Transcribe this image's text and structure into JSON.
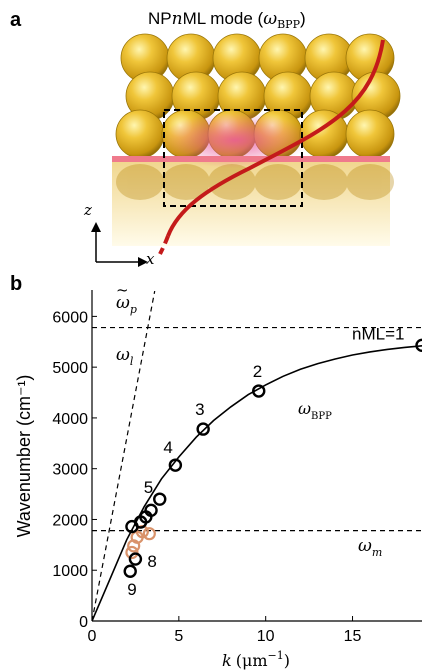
{
  "panel_a": {
    "letter": "a",
    "title_prefix": "NP",
    "title_n": "n",
    "title_suffix": "ML mode (",
    "title_omega": "ω",
    "title_sub": "BPP",
    "title_close": ")",
    "axis_z": "z",
    "axis_x": "x"
  },
  "panel_b": {
    "letter": "b"
  },
  "chart_data": {
    "type": "scatter",
    "xlabel_main": "k",
    "xlabel_unit": "(μm",
    "xlabel_exp": "−1",
    "xlabel_close": ")",
    "ylabel": "Wavenumber (cm⁻¹)",
    "xlim": [
      0,
      19
    ],
    "ylim": [
      0,
      6500
    ],
    "xticks": [
      0,
      5,
      10,
      15
    ],
    "yticks": [
      0,
      1000,
      2000,
      3000,
      4000,
      5000,
      6000
    ],
    "grid": false,
    "points": [
      {
        "x": 19.0,
        "y": 5430,
        "label": "nML=1"
      },
      {
        "x": 9.6,
        "y": 4530,
        "label": "2"
      },
      {
        "x": 6.4,
        "y": 3780,
        "label": "3"
      },
      {
        "x": 4.8,
        "y": 3070,
        "label": "4"
      },
      {
        "x": 3.9,
        "y": 2400,
        "label": "5"
      },
      {
        "x": 3.4,
        "y": 2180,
        "label": ""
      },
      {
        "x": 3.1,
        "y": 2050,
        "label": ""
      },
      {
        "x": 2.8,
        "y": 1950,
        "label": ""
      },
      {
        "x": 2.3,
        "y": 1860,
        "label": ""
      },
      {
        "x": 2.5,
        "y": 1220,
        "label": "8"
      },
      {
        "x": 2.2,
        "y": 980,
        "label": "9"
      }
    ],
    "orange_points": [
      {
        "x": 2.9,
        "y": 1760
      },
      {
        "x": 3.3,
        "y": 1720
      },
      {
        "x": 2.6,
        "y": 1650
      },
      {
        "x": 2.4,
        "y": 1480
      },
      {
        "x": 2.3,
        "y": 1350
      }
    ],
    "curve_omega_bpp": {
      "name": "ω",
      "sub": "BPP",
      "x": [
        0,
        1,
        2,
        3,
        4,
        5,
        6,
        7,
        8,
        9,
        10,
        11,
        12,
        13,
        14,
        15,
        16,
        17,
        18,
        19
      ],
      "y": [
        0,
        800,
        1600,
        2250,
        2800,
        3230,
        3620,
        3950,
        4220,
        4460,
        4650,
        4820,
        4960,
        5070,
        5160,
        5240,
        5300,
        5350,
        5390,
        5420
      ]
    },
    "line_omega_l": {
      "name": "ω",
      "sub": "l",
      "slope": 1800
    },
    "line_omega_p": {
      "name_top": "~",
      "name": "ω",
      "sub": "p",
      "y": 5780
    },
    "line_omega_m": {
      "name": "ω",
      "sub": "m",
      "y": 1780
    },
    "colors": {
      "points": "#000000",
      "orange": "#d9936b",
      "curve": "#000000"
    }
  },
  "colors": {
    "gold": "#e2b226",
    "gold_dark": "#8a6a08",
    "mode_red": "#c41a1a",
    "mode_pink": "#e8559a",
    "substrate": "#f3de9a",
    "interface": "#ef7a8c"
  }
}
